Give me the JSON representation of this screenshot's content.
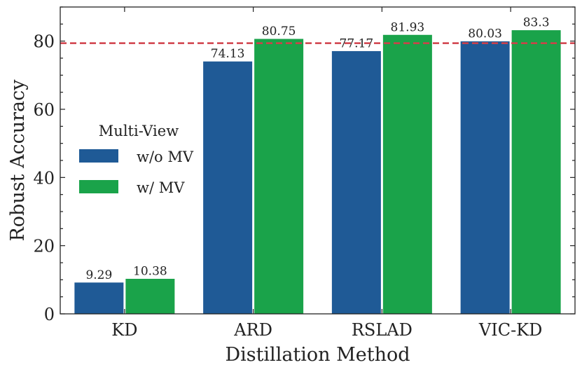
{
  "chart_data": {
    "type": "bar",
    "categories": [
      "KD",
      "ARD",
      "RSLAD",
      "VIC-KD"
    ],
    "series": [
      {
        "name": "w/o MV",
        "values": [
          9.29,
          74.13,
          77.17,
          80.03
        ],
        "labels": [
          "9.29",
          "74.13",
          "77.17",
          "80.03"
        ],
        "color": "#1f5a96"
      },
      {
        "name": "w/ MV",
        "values": [
          10.38,
          80.75,
          81.93,
          83.3
        ],
        "labels": [
          "10.38",
          "80.75",
          "81.93",
          "83.3"
        ],
        "color": "#1aa34a"
      }
    ],
    "reference_line": {
      "value": 79.4,
      "color": "#d1404a",
      "style": "dashed"
    },
    "xlabel": "Distillation Method",
    "ylabel": "Robust Accuracy",
    "ylim": [
      0,
      90
    ],
    "yticks": [
      0,
      20,
      40,
      60,
      80
    ],
    "ytick_labels": [
      "0",
      "20",
      "40",
      "60",
      "80"
    ],
    "legend": {
      "title": "Multi-View",
      "placement": "center-left"
    }
  }
}
